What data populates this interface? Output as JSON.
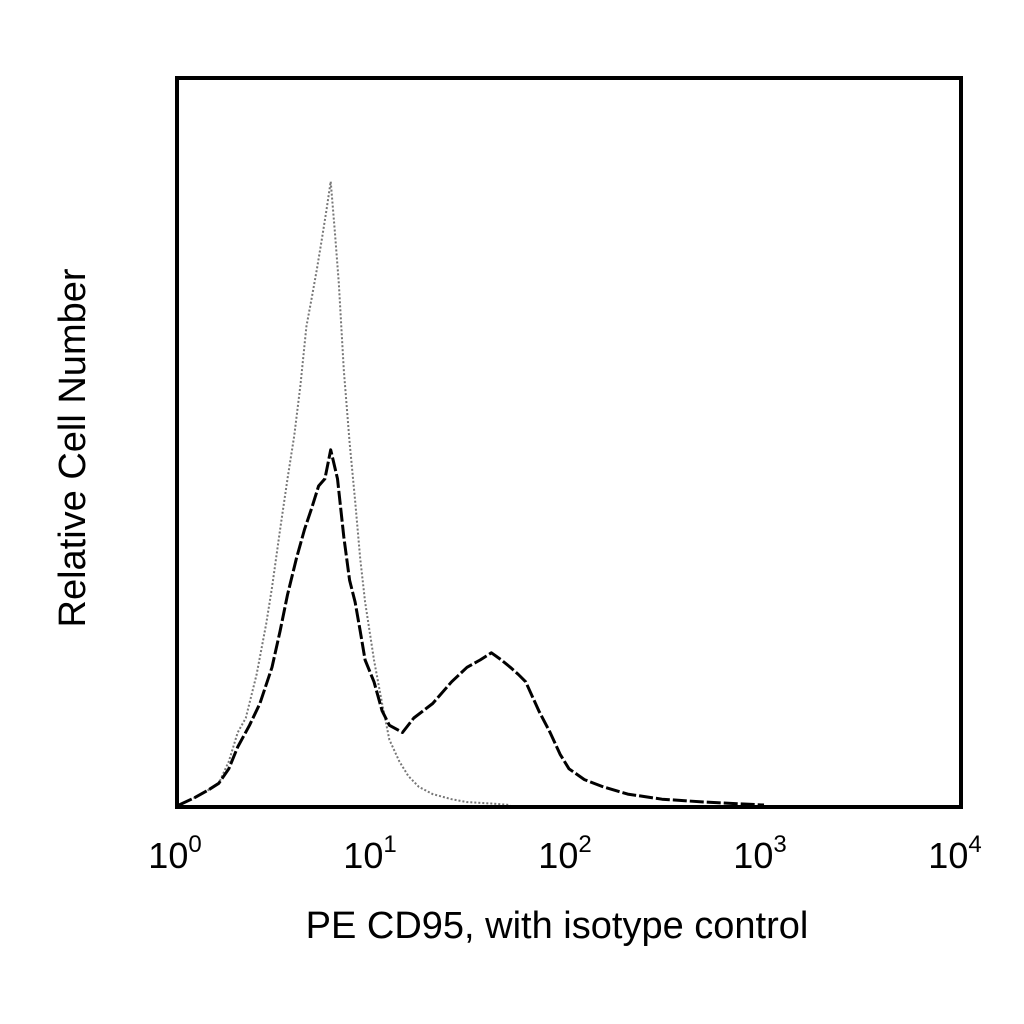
{
  "chart_data": {
    "type": "line",
    "xlabel": "PE CD95, with isotype control",
    "ylabel": "Relative Cell Number",
    "x_scale": "log",
    "xlim": [
      1,
      10000
    ],
    "ylim": [
      0,
      1
    ],
    "x_ticks": [
      {
        "value": 1,
        "base": "10",
        "exp": "0"
      },
      {
        "value": 10,
        "base": "10",
        "exp": "1"
      },
      {
        "value": 100,
        "base": "10",
        "exp": "2"
      },
      {
        "value": 1000,
        "base": "10",
        "exp": "3"
      },
      {
        "value": 10000,
        "base": "10",
        "exp": "4"
      }
    ],
    "grid": false,
    "legend": "none",
    "series": [
      {
        "style": "dotted-gray",
        "color": "#777777",
        "x": [
          1.0,
          1.2,
          1.4,
          1.6,
          1.8,
          2.0,
          2.2,
          2.5,
          2.8,
          3.0,
          3.3,
          3.6,
          3.9,
          4.2,
          4.5,
          4.8,
          5.1,
          5.4,
          5.7,
          6.0,
          6.3,
          6.6,
          7.0,
          7.5,
          8.0,
          8.5,
          9.0,
          10.0,
          11.0,
          12.0,
          13.5,
          15.0,
          17.0,
          20.0,
          25.0,
          30.0,
          40.0,
          50.0
        ],
        "y": [
          0.0,
          0.01,
          0.02,
          0.03,
          0.06,
          0.1,
          0.12,
          0.18,
          0.25,
          0.3,
          0.38,
          0.45,
          0.51,
          0.58,
          0.66,
          0.7,
          0.74,
          0.78,
          0.82,
          0.86,
          0.79,
          0.72,
          0.6,
          0.5,
          0.42,
          0.34,
          0.28,
          0.2,
          0.14,
          0.09,
          0.06,
          0.04,
          0.025,
          0.015,
          0.008,
          0.004,
          0.002,
          0.0
        ]
      },
      {
        "style": "solid-black",
        "color": "#000000",
        "x": [
          1.0,
          1.2,
          1.4,
          1.6,
          1.8,
          2.0,
          2.3,
          2.6,
          3.0,
          3.3,
          3.6,
          4.0,
          4.4,
          4.8,
          5.2,
          5.6,
          6.0,
          6.5,
          7.0,
          7.5,
          8.0,
          8.5,
          9.0,
          10.0,
          11.0,
          12.0,
          14.0,
          16.0,
          20.0,
          25.0,
          30.0,
          35.0,
          40.0,
          45.0,
          50.0,
          55.0,
          60.0,
          70.0,
          80.0,
          90.0,
          100.0,
          120.0,
          150.0,
          200.0,
          300.0,
          500.0,
          1000.0
        ],
        "y": [
          0.0,
          0.01,
          0.02,
          0.03,
          0.05,
          0.08,
          0.11,
          0.14,
          0.19,
          0.24,
          0.29,
          0.34,
          0.38,
          0.41,
          0.44,
          0.45,
          0.49,
          0.45,
          0.37,
          0.31,
          0.28,
          0.24,
          0.2,
          0.17,
          0.13,
          0.11,
          0.1,
          0.12,
          0.14,
          0.17,
          0.19,
          0.2,
          0.21,
          0.2,
          0.19,
          0.18,
          0.17,
          0.13,
          0.1,
          0.07,
          0.05,
          0.035,
          0.025,
          0.015,
          0.008,
          0.004,
          0.0
        ]
      }
    ]
  }
}
